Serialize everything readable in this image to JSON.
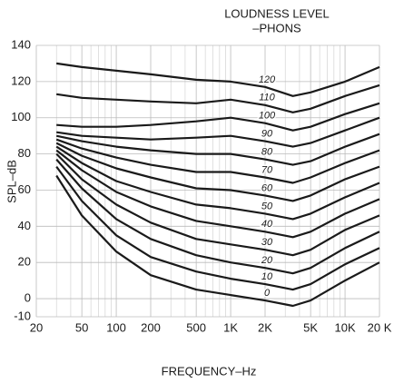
{
  "chart_data": {
    "type": "line",
    "title": [
      "LOUDNESS LEVEL",
      "–PHONS"
    ],
    "x_label": "FREQUENCY–Hz",
    "y_label": "SPL–dB",
    "x": [
      30,
      50,
      100,
      200,
      500,
      1000,
      2000,
      3500,
      5000,
      10000,
      20000
    ],
    "xlim": [
      20,
      20000
    ],
    "xticks": [
      20,
      50,
      100,
      200,
      500,
      {
        "value": 1000,
        "label": "1K"
      },
      {
        "value": 2000,
        "label": "2K"
      },
      {
        "value": 5000,
        "label": "5K"
      },
      {
        "value": 10000,
        "label": "10K"
      },
      {
        "value": 20000,
        "label": "20 K"
      }
    ],
    "xminorticks": [
      30,
      40,
      60,
      70,
      80,
      90,
      300,
      400,
      600,
      700,
      800,
      900,
      3000,
      4000,
      6000,
      7000,
      8000,
      9000
    ],
    "xlog": true,
    "ylim": [
      -10,
      140
    ],
    "yticks": [
      -10,
      0,
      20,
      40,
      60,
      80,
      100,
      120,
      140
    ],
    "grid": true,
    "series": [
      {
        "name": "0",
        "color": "#1a1a1a",
        "values": [
          68,
          46,
          26,
          13,
          5,
          2,
          -1,
          -4,
          -1,
          10,
          20
        ]
      },
      {
        "name": "10",
        "color": "#1a1a1a",
        "values": [
          73,
          54,
          35,
          23,
          15,
          11,
          8,
          5,
          8,
          19,
          28
        ]
      },
      {
        "name": "20",
        "color": "#1a1a1a",
        "values": [
          77,
          61,
          44,
          33,
          24,
          20,
          17,
          14,
          17,
          28,
          37
        ]
      },
      {
        "name": "30",
        "color": "#1a1a1a",
        "values": [
          80,
          66,
          52,
          42,
          33,
          30,
          27,
          24,
          27,
          38,
          46
        ]
      },
      {
        "name": "40",
        "color": "#1a1a1a",
        "values": [
          82,
          71,
          59,
          51,
          43,
          40,
          37,
          34,
          37,
          47,
          55
        ]
      },
      {
        "name": "50",
        "color": "#1a1a1a",
        "values": [
          84,
          75,
          65,
          59,
          52,
          50,
          47,
          44,
          47,
          56,
          64
        ]
      },
      {
        "name": "60",
        "color": "#1a1a1a",
        "values": [
          86,
          79,
          72,
          67,
          61,
          60,
          57,
          54,
          57,
          66,
          73
        ]
      },
      {
        "name": "70",
        "color": "#1a1a1a",
        "values": [
          88,
          83,
          78,
          74,
          70,
          70,
          67,
          64,
          67,
          75,
          82
        ]
      },
      {
        "name": "80",
        "color": "#1a1a1a",
        "values": [
          90,
          87,
          84,
          82,
          80,
          80,
          77,
          74,
          76,
          84,
          91
        ]
      },
      {
        "name": "90",
        "color": "#1a1a1a",
        "values": [
          92,
          90,
          89,
          88,
          89,
          90,
          87,
          84,
          86,
          93,
          100
        ]
      },
      {
        "name": "100",
        "color": "#1a1a1a",
        "values": [
          96,
          95,
          95,
          96,
          98,
          100,
          97,
          93,
          95,
          102,
          108
        ]
      },
      {
        "name": "110",
        "color": "#1a1a1a",
        "values": [
          113,
          111,
          110,
          109,
          108,
          110,
          107,
          103,
          105,
          112,
          118
        ]
      },
      {
        "name": "120",
        "color": "#1a1a1a",
        "values": [
          130,
          128,
          126,
          124,
          121,
          120,
          117,
          112,
          114,
          120,
          128
        ]
      }
    ]
  }
}
